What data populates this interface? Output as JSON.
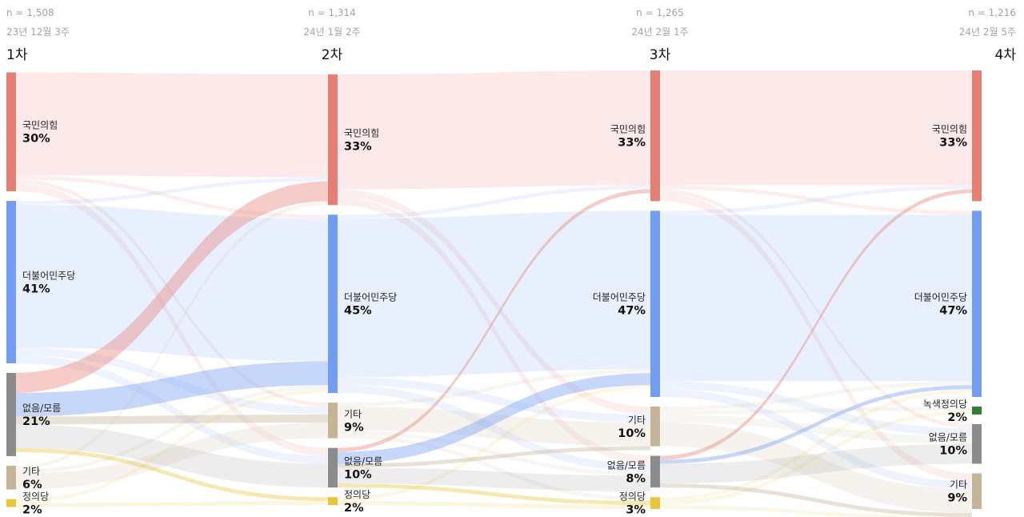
{
  "chart_data": {
    "type": "sankey",
    "waves": [
      {
        "n": "n = 1,508",
        "date": "23년 12월 3주",
        "label": "1차"
      },
      {
        "n": "n = 1,314",
        "date": "24년 1월 2주",
        "label": "2차"
      },
      {
        "n": "n = 1,265",
        "date": "24년 2월 1주",
        "label": "3차"
      },
      {
        "n": "n = 1,216",
        "date": "24년 2월 5주",
        "label": "4차"
      }
    ],
    "colors": {
      "국민의힘": "#e57f74",
      "더불어민주당": "#739cf3",
      "없음/모름": "#8c8c8c",
      "기타": "#c4b498",
      "정의당": "#e9c53c",
      "녹색정의당": "#2e7d32"
    },
    "nodes": [
      [
        {
          "name": "국민의힘",
          "value": 30,
          "pct": "30%"
        },
        {
          "name": "더불어민주당",
          "value": 41,
          "pct": "41%"
        },
        {
          "name": "없음/모름",
          "value": 21,
          "pct": "21%"
        },
        {
          "name": "기타",
          "value": 6,
          "pct": "6%"
        },
        {
          "name": "정의당",
          "value": 2,
          "pct": "2%"
        }
      ],
      [
        {
          "name": "국민의힘",
          "value": 33,
          "pct": "33%"
        },
        {
          "name": "더불어민주당",
          "value": 45,
          "pct": "45%"
        },
        {
          "name": "기타",
          "value": 9,
          "pct": "9%"
        },
        {
          "name": "없음/모름",
          "value": 10,
          "pct": "10%"
        },
        {
          "name": "정의당",
          "value": 2,
          "pct": "2%"
        }
      ],
      [
        {
          "name": "국민의힘",
          "value": 33,
          "pct": "33%"
        },
        {
          "name": "더불어민주당",
          "value": 47,
          "pct": "47%"
        },
        {
          "name": "기타",
          "value": 10,
          "pct": "10%"
        },
        {
          "name": "없음/모름",
          "value": 8,
          "pct": "8%"
        },
        {
          "name": "정의당",
          "value": 3,
          "pct": "3%"
        }
      ],
      [
        {
          "name": "국민의힘",
          "value": 33,
          "pct": "33%"
        },
        {
          "name": "더불어민주당",
          "value": 47,
          "pct": "47%"
        },
        {
          "name": "녹색정의당",
          "value": 2,
          "pct": "2%"
        },
        {
          "name": "없음/모름",
          "value": 10,
          "pct": "10%"
        },
        {
          "name": "기타",
          "value": 9,
          "pct": "9%"
        }
      ]
    ],
    "flows": [
      [
        {
          "from": "국민의힘",
          "to": "국민의힘",
          "value": 26
        },
        {
          "from": "국민의힘",
          "to": "더불어민주당",
          "value": 1
        },
        {
          "from": "국민의힘",
          "to": "기타",
          "value": 1
        },
        {
          "from": "국민의힘",
          "to": "없음/모름",
          "value": 2
        },
        {
          "from": "더불어민주당",
          "to": "국민의힘",
          "value": 1
        },
        {
          "from": "더불어민주당",
          "to": "더불어민주당",
          "value": 36
        },
        {
          "from": "더불어민주당",
          "to": "기타",
          "value": 2
        },
        {
          "from": "더불어민주당",
          "to": "없음/모름",
          "value": 2
        },
        {
          "from": "없음/모름",
          "to": "국민의힘",
          "value": 5
        },
        {
          "from": "없음/모름",
          "to": "더불어민주당",
          "value": 6
        },
        {
          "from": "없음/모름",
          "to": "기타",
          "value": 2
        },
        {
          "from": "없음/모름",
          "to": "없음/모름",
          "value": 6
        },
        {
          "from": "없음/모름",
          "to": "정의당",
          "value": 1
        },
        {
          "from": "기타",
          "to": "국민의힘",
          "value": 1
        },
        {
          "from": "기타",
          "to": "더불어민주당",
          "value": 1
        },
        {
          "from": "기타",
          "to": "기타",
          "value": 4
        },
        {
          "from": "정의당",
          "to": "더불어민주당",
          "value": 1
        },
        {
          "from": "정의당",
          "to": "정의당",
          "value": 1
        }
      ],
      [
        {
          "from": "국민의힘",
          "to": "국민의힘",
          "value": 29
        },
        {
          "from": "국민의힘",
          "to": "기타",
          "value": 2
        },
        {
          "from": "국민의힘",
          "to": "없음/모름",
          "value": 2
        },
        {
          "from": "더불어민주당",
          "to": "국민의힘",
          "value": 1
        },
        {
          "from": "더불어민주당",
          "to": "더불어민주당",
          "value": 40
        },
        {
          "from": "더불어민주당",
          "to": "기타",
          "value": 2
        },
        {
          "from": "더불어민주당",
          "to": "없음/모름",
          "value": 2
        },
        {
          "from": "기타",
          "to": "더불어민주당",
          "value": 1
        },
        {
          "from": "기타",
          "to": "기타",
          "value": 6
        },
        {
          "from": "기타",
          "to": "없음/모름",
          "value": 1
        },
        {
          "from": "기타",
          "to": "정의당",
          "value": 1
        },
        {
          "from": "없음/모름",
          "to": "국민의힘",
          "value": 1
        },
        {
          "from": "없음/모름",
          "to": "더불어민주당",
          "value": 3
        },
        {
          "from": "없음/모름",
          "to": "기타",
          "value": 1
        },
        {
          "from": "없음/모름",
          "to": "없음/모름",
          "value": 4
        },
        {
          "from": "없음/모름",
          "to": "정의당",
          "value": 1
        },
        {
          "from": "정의당",
          "to": "정의당",
          "value": 1
        },
        {
          "from": "정의당",
          "to": "더불어민주당",
          "value": 1
        }
      ],
      [
        {
          "from": "국민의힘",
          "to": "국민의힘",
          "value": 29
        },
        {
          "from": "국민의힘",
          "to": "더불어민주당",
          "value": 1
        },
        {
          "from": "국민의힘",
          "to": "없음/모름",
          "value": 1
        },
        {
          "from": "국민의힘",
          "to": "기타",
          "value": 2
        },
        {
          "from": "더불어민주당",
          "to": "국민의힘",
          "value": 1
        },
        {
          "from": "더불어민주당",
          "to": "더불어민주당",
          "value": 42
        },
        {
          "from": "더불어민주당",
          "to": "없음/모름",
          "value": 2
        },
        {
          "from": "더불어민주당",
          "to": "기타",
          "value": 2
        },
        {
          "from": "기타",
          "to": "더불어민주당",
          "value": 1
        },
        {
          "from": "기타",
          "to": "없음/모름",
          "value": 2
        },
        {
          "from": "기타",
          "to": "기타",
          "value": 6
        },
        {
          "from": "기타",
          "to": "녹색정의당",
          "value": 1
        },
        {
          "from": "없음/모름",
          "to": "국민의힘",
          "value": 1
        },
        {
          "from": "없음/모름",
          "to": "더불어민주당",
          "value": 1
        },
        {
          "from": "없음/모름",
          "to": "없음/모름",
          "value": 5
        },
        {
          "from": "없음/모름",
          "to": "기타",
          "value": 1
        },
        {
          "from": "정의당",
          "to": "더불어민주당",
          "value": 1
        },
        {
          "from": "정의당",
          "to": "녹색정의당",
          "value": 1
        },
        {
          "from": "정의당",
          "to": "기타",
          "value": 1
        }
      ]
    ]
  }
}
